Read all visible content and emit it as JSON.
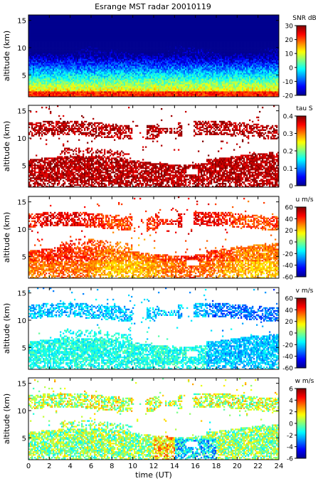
{
  "title": "Esrange MST radar 20010119",
  "colormap": [
    "#00008f",
    "#0000ff",
    "#0080ff",
    "#00ffff",
    "#80ff80",
    "#ffff00",
    "#ff8000",
    "#ff0000",
    "#800000"
  ],
  "chart_data": [
    {
      "type": "heatmap",
      "title": "Esrange MST radar 20010119",
      "xlabel": "",
      "ylabel": "altitude (km)",
      "xlim": [
        0,
        24
      ],
      "ylim": [
        1,
        16
      ],
      "yticks": [
        "5",
        "10",
        "15"
      ],
      "colorbar_label": "SNR dB",
      "clim": [
        -20,
        30
      ],
      "cticks": [
        "30",
        "20",
        "10",
        "0",
        "-10",
        "-20"
      ],
      "field": "snr"
    },
    {
      "type": "heatmap",
      "title": "",
      "xlabel": "",
      "ylabel": "altitude (km)",
      "xlim": [
        0,
        24
      ],
      "ylim": [
        1,
        16
      ],
      "yticks": [
        "5",
        "10",
        "15"
      ],
      "colorbar_label": "tau S",
      "clim": [
        0,
        0.4
      ],
      "cticks": [
        "0.4",
        "0.3",
        "0.2",
        "0.1",
        "0"
      ],
      "field": "tau"
    },
    {
      "type": "heatmap",
      "title": "",
      "xlabel": "",
      "ylabel": "altitude (km)",
      "xlim": [
        0,
        24
      ],
      "ylim": [
        1,
        16
      ],
      "yticks": [
        "5",
        "10",
        "15"
      ],
      "colorbar_label": "u m/s",
      "clim": [
        -60,
        60
      ],
      "cticks": [
        "60",
        "40",
        "20",
        "0",
        "-20",
        "-40",
        "-60"
      ],
      "field": "u"
    },
    {
      "type": "heatmap",
      "title": "",
      "xlabel": "",
      "ylabel": "altitude (km)",
      "xlim": [
        0,
        24
      ],
      "ylim": [
        1,
        16
      ],
      "yticks": [
        "5",
        "10",
        "15"
      ],
      "colorbar_label": "v m/s",
      "clim": [
        -60,
        60
      ],
      "cticks": [
        "60",
        "40",
        "20",
        "0",
        "-20",
        "-40",
        "-60"
      ],
      "field": "v"
    },
    {
      "type": "heatmap",
      "title": "",
      "xlabel": "time (UT)",
      "ylabel": "altitude (km)",
      "xlim": [
        0,
        24
      ],
      "ylim": [
        1,
        16
      ],
      "yticks": [
        "5",
        "10",
        "15"
      ],
      "xticks": [
        "0",
        "2",
        "4",
        "6",
        "8",
        "10",
        "12",
        "14",
        "16",
        "18",
        "20",
        "22",
        "24"
      ],
      "colorbar_label": "w m/s",
      "clim": [
        -6,
        6
      ],
      "cticks": [
        "6",
        "4",
        "2",
        "0",
        "-2",
        "-4",
        "-6"
      ],
      "field": "w"
    }
  ]
}
